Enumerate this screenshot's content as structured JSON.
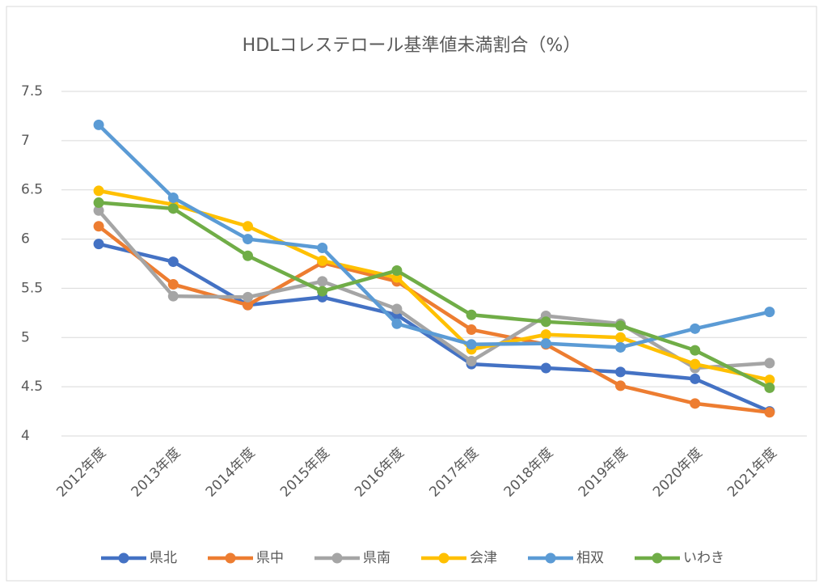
{
  "chart_data": {
    "type": "line",
    "title": "HDLコレステロール基準値未満割合（%）",
    "categories": [
      "2012年度",
      "2013年度",
      "2014年度",
      "2015年度",
      "2016年度",
      "2017年度",
      "2018年度",
      "2019年度",
      "2020年度",
      "2021年度"
    ],
    "series": [
      {
        "name": "県北",
        "color": "#4472c4",
        "values": [
          5.95,
          5.77,
          5.33,
          5.41,
          5.23,
          4.73,
          4.69,
          4.65,
          4.58,
          4.25
        ]
      },
      {
        "name": "県中",
        "color": "#ed7d31",
        "values": [
          6.13,
          5.54,
          5.33,
          5.76,
          5.57,
          5.08,
          4.93,
          4.51,
          4.33,
          4.24
        ]
      },
      {
        "name": "県南",
        "color": "#a5a5a5",
        "values": [
          6.29,
          5.42,
          5.41,
          5.57,
          5.29,
          4.76,
          5.22,
          5.14,
          4.69,
          4.74
        ]
      },
      {
        "name": "会津",
        "color": "#ffc000",
        "values": [
          6.49,
          6.35,
          6.13,
          5.78,
          5.61,
          4.88,
          5.03,
          5.0,
          4.73,
          4.57
        ]
      },
      {
        "name": "相双",
        "color": "#5b9bd5",
        "values": [
          7.16,
          6.42,
          6.0,
          5.91,
          5.14,
          4.93,
          4.94,
          4.9,
          5.09,
          5.26
        ]
      },
      {
        "name": "いわき",
        "color": "#70ad47",
        "values": [
          6.37,
          6.31,
          5.83,
          5.47,
          5.68,
          5.23,
          5.16,
          5.12,
          4.87,
          4.49
        ]
      }
    ],
    "ylim": [
      4,
      7.5
    ],
    "yticks": [
      4,
      4.5,
      5,
      5.5,
      6,
      6.5,
      7,
      7.5
    ],
    "grid": true,
    "legend": "bottom"
  }
}
